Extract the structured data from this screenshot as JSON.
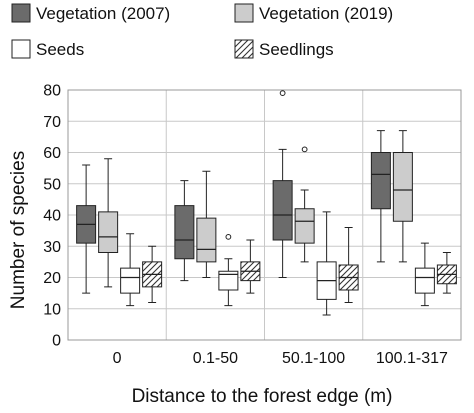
{
  "chart_data": {
    "type": "boxplot",
    "xlabel": "Distance to the forest edge (m)",
    "ylabel": "Number of species",
    "ylim": [
      0,
      80
    ],
    "yticks": [
      0,
      10,
      20,
      30,
      40,
      50,
      60,
      70,
      80
    ],
    "grid": "horizontal",
    "legend_position": "top",
    "categories": [
      "0",
      "0.1-50",
      "50.1-100",
      "100.1-317"
    ],
    "series": [
      {
        "name": "Vegetation (2007)",
        "fill": "#6b6b6b",
        "pattern": "solid",
        "boxes": [
          {
            "whisker_low": 15,
            "q1": 31,
            "median": 37,
            "q3": 43,
            "whisker_high": 56,
            "outliers": []
          },
          {
            "whisker_low": 19,
            "q1": 26,
            "median": 32,
            "q3": 43,
            "whisker_high": 51,
            "outliers": []
          },
          {
            "whisker_low": 20,
            "q1": 32,
            "median": 40,
            "q3": 51,
            "whisker_high": 61,
            "outliers": [
              79
            ]
          },
          {
            "whisker_low": 25,
            "q1": 42,
            "median": 53,
            "q3": 60,
            "whisker_high": 67,
            "outliers": []
          }
        ]
      },
      {
        "name": "Vegetation (2019)",
        "fill": "#cccccc",
        "pattern": "solid",
        "boxes": [
          {
            "whisker_low": 17,
            "q1": 28,
            "median": 33,
            "q3": 41,
            "whisker_high": 58,
            "outliers": []
          },
          {
            "whisker_low": 20,
            "q1": 25,
            "median": 29,
            "q3": 39,
            "whisker_high": 54,
            "outliers": []
          },
          {
            "whisker_low": 25,
            "q1": 31,
            "median": 38,
            "q3": 42,
            "whisker_high": 48,
            "outliers": [
              61
            ]
          },
          {
            "whisker_low": 25,
            "q1": 38,
            "median": 48,
            "q3": 60,
            "whisker_high": 67,
            "outliers": []
          }
        ]
      },
      {
        "name": "Seeds",
        "fill": "#ffffff",
        "pattern": "solid",
        "boxes": [
          {
            "whisker_low": 11,
            "q1": 15,
            "median": 20,
            "q3": 23,
            "whisker_high": 34,
            "outliers": []
          },
          {
            "whisker_low": 11,
            "q1": 16,
            "median": 21,
            "q3": 22,
            "whisker_high": 26,
            "outliers": [
              33
            ]
          },
          {
            "whisker_low": 8,
            "q1": 13,
            "median": 19,
            "q3": 25,
            "whisker_high": 41,
            "outliers": []
          },
          {
            "whisker_low": 11,
            "q1": 15,
            "median": 20,
            "q3": 23,
            "whisker_high": 31,
            "outliers": []
          }
        ]
      },
      {
        "name": "Seedlings",
        "fill": "#ffffff",
        "pattern": "hatch",
        "boxes": [
          {
            "whisker_low": 12,
            "q1": 17,
            "median": 21,
            "q3": 25,
            "whisker_high": 30,
            "outliers": []
          },
          {
            "whisker_low": 15,
            "q1": 19,
            "median": 22,
            "q3": 25,
            "whisker_high": 32,
            "outliers": []
          },
          {
            "whisker_low": 12,
            "q1": 16,
            "median": 20,
            "q3": 24,
            "whisker_high": 36,
            "outliers": []
          },
          {
            "whisker_low": 15,
            "q1": 18,
            "median": 21,
            "q3": 24,
            "whisker_high": 28,
            "outliers": []
          }
        ]
      }
    ]
  },
  "colors": {
    "stroke": "#222222",
    "grid": "#c8c8c8",
    "hatch": "#333333"
  }
}
